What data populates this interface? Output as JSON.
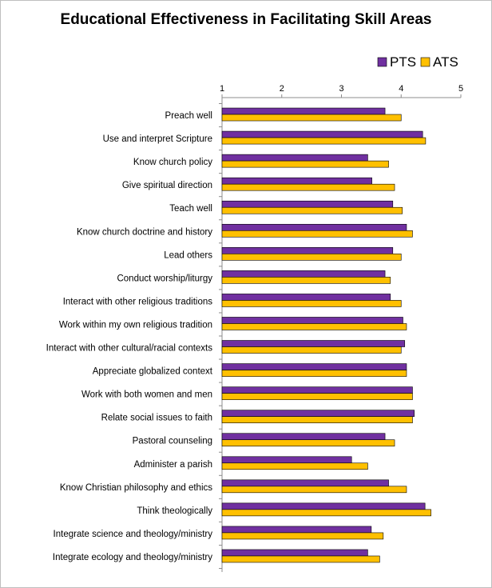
{
  "chart_data": {
    "type": "bar",
    "orientation": "horizontal",
    "title": "Educational Effectiveness in Facilitating Skill Areas",
    "xlim": [
      1,
      5
    ],
    "ticks": [
      "1",
      "2",
      "3",
      "4",
      "5"
    ],
    "legend_position": "top-right",
    "grid": false,
    "categories": [
      "Preach well",
      "Use and interpret Scripture",
      "Know church policy",
      "Give spiritual direction",
      "Teach well",
      "Know church doctrine and history",
      "Lead others",
      "Conduct worship/liturgy",
      "Interact with other religious traditions",
      "Work within my own religious tradition",
      "Interact with other cultural/racial contexts",
      "Appreciate globalized context",
      "Work with both women and men",
      "Relate social issues to faith",
      "Pastoral counseling",
      "Administer a parish",
      "Know Christian philosophy and ethics",
      "Think theologically",
      "Integrate science and theology/ministry",
      "Integrate ecology and theology/ministry"
    ],
    "series": [
      {
        "name": "PTS",
        "color": "#7030a0",
        "values": [
          3.73,
          4.36,
          3.44,
          3.51,
          3.86,
          4.09,
          3.86,
          3.73,
          3.82,
          4.03,
          4.06,
          4.09,
          4.19,
          4.22,
          3.73,
          3.17,
          3.79,
          4.4,
          3.5,
          3.44
        ]
      },
      {
        "name": "ATS",
        "color": "#ffc000",
        "values": [
          4.0,
          4.41,
          3.79,
          3.89,
          4.02,
          4.19,
          4.0,
          3.82,
          4.0,
          4.09,
          4.0,
          4.09,
          4.19,
          4.19,
          3.89,
          3.44,
          4.09,
          4.5,
          3.7,
          3.64
        ]
      }
    ]
  }
}
